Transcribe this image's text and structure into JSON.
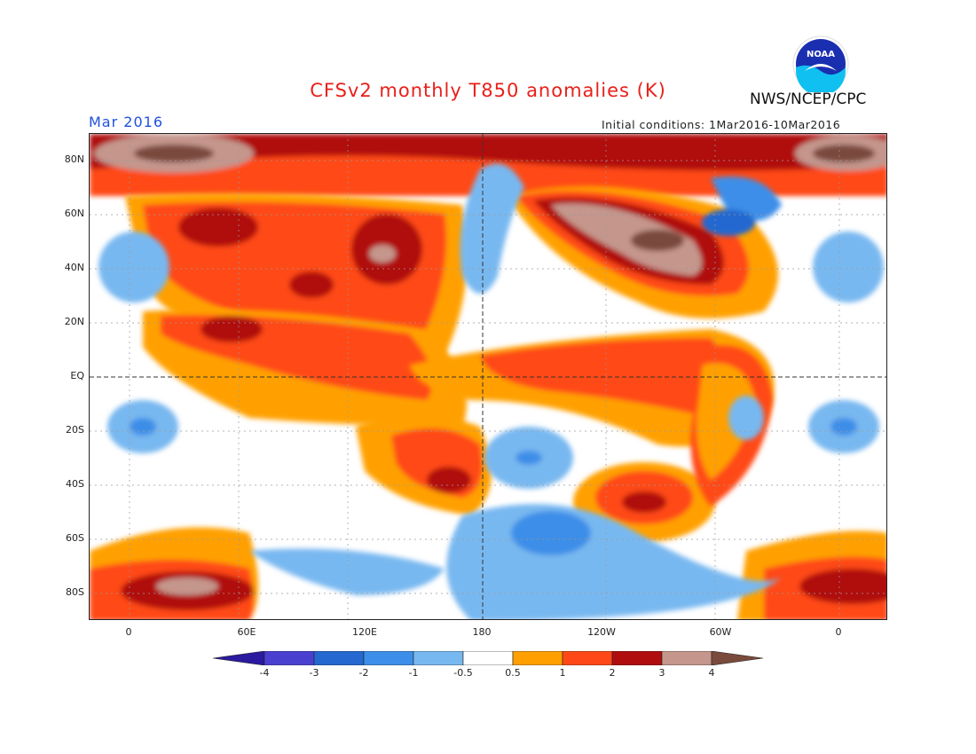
{
  "title": "CFSv2 monthly T850 anomalies (K)",
  "agency": "NWS/NCEP/CPC",
  "logo_text": "NOAA",
  "valid_month": "Mar 2016",
  "initial_conditions": "Initial conditions: 1Mar2016-10Mar2016",
  "lat_labels": [
    "80N",
    "60N",
    "40N",
    "20N",
    "EQ",
    "20S",
    "40S",
    "60S",
    "80S"
  ],
  "lon_labels": [
    "0",
    "60E",
    "120E",
    "180",
    "120W",
    "60W",
    "0"
  ],
  "colorbar": {
    "tick_labels": [
      "-4",
      "-3",
      "-2",
      "-1",
      "-0.5",
      "0.5",
      "1",
      "2",
      "3",
      "4"
    ],
    "colors": [
      "#2a1aa0",
      "#4a40d0",
      "#2468d0",
      "#3c8ee8",
      "#78b8f0",
      "#ffffff",
      "#ffa000",
      "#ff4818",
      "#b00e0e",
      "#c4968c",
      "#7a4a3c"
    ]
  }
}
